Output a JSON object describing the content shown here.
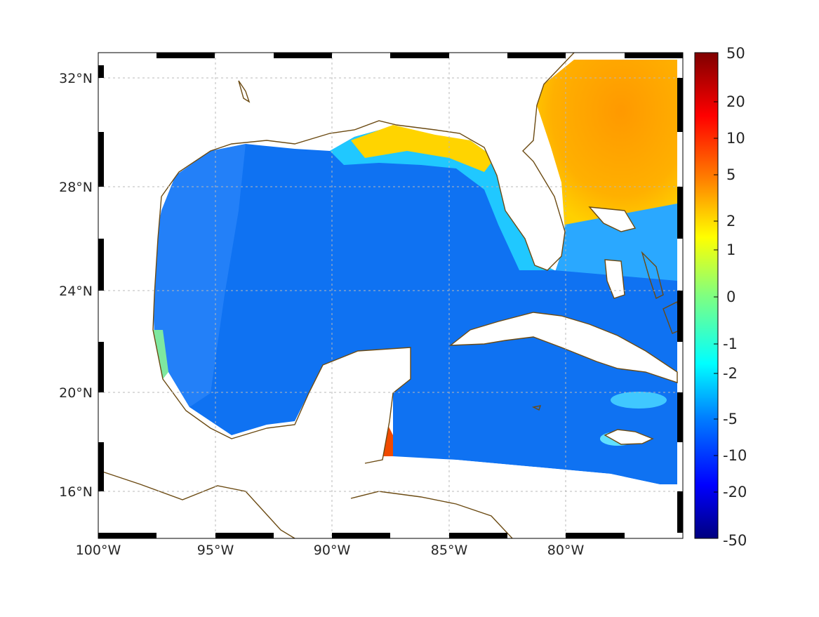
{
  "map": {
    "lon_ticks": [
      "100°W",
      "95°W",
      "90°W",
      "85°W",
      "80°W"
    ],
    "lat_ticks": [
      "32°N",
      "28°N",
      "24°N",
      "20°N",
      "16°N"
    ],
    "extent": {
      "lon": [
        -100,
        -75
      ],
      "lat": [
        14.3,
        33
      ]
    },
    "grid": true,
    "land_color": "#ffffff",
    "coast_color": "#6b4a12"
  },
  "colorbar": {
    "labels": [
      "50",
      "20",
      "10",
      "5",
      "2",
      "1",
      "0",
      "-1",
      "-2",
      "-5",
      "-10",
      "-20",
      "-50"
    ],
    "colormap": "jet",
    "max_color": "#7f0000",
    "min_color": "#00007f"
  }
}
